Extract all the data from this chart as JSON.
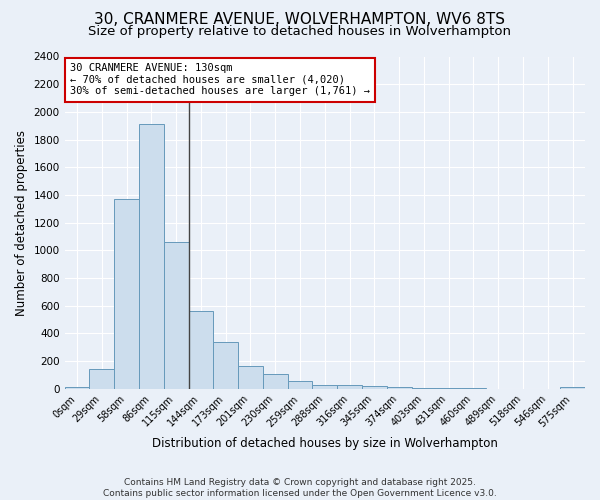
{
  "title_line1": "30, CRANMERE AVENUE, WOLVERHAMPTON, WV6 8TS",
  "title_line2": "Size of property relative to detached houses in Wolverhampton",
  "xlabel": "Distribution of detached houses by size in Wolverhampton",
  "ylabel": "Number of detached properties",
  "bar_color": "#ccdded",
  "bar_edge_color": "#6699bb",
  "background_color": "#eaf0f8",
  "grid_color": "#ffffff",
  "categories": [
    "0sqm",
    "29sqm",
    "58sqm",
    "86sqm",
    "115sqm",
    "144sqm",
    "173sqm",
    "201sqm",
    "230sqm",
    "259sqm",
    "288sqm",
    "316sqm",
    "345sqm",
    "374sqm",
    "403sqm",
    "431sqm",
    "460sqm",
    "489sqm",
    "518sqm",
    "546sqm",
    "575sqm"
  ],
  "values": [
    10,
    140,
    1370,
    1910,
    1060,
    560,
    340,
    165,
    105,
    55,
    30,
    30,
    20,
    15,
    5,
    5,
    5,
    0,
    0,
    0,
    15
  ],
  "ylim": [
    0,
    2400
  ],
  "yticks": [
    0,
    200,
    400,
    600,
    800,
    1000,
    1200,
    1400,
    1600,
    1800,
    2000,
    2200,
    2400
  ],
  "property_line_x": 4.5,
  "annotation_text": "30 CRANMERE AVENUE: 130sqm\n← 70% of detached houses are smaller (4,020)\n30% of semi-detached houses are larger (1,761) →",
  "annotation_box_color": "#ffffff",
  "annotation_box_edge": "#cc0000",
  "footer_line1": "Contains HM Land Registry data © Crown copyright and database right 2025.",
  "footer_line2": "Contains public sector information licensed under the Open Government Licence v3.0.",
  "title_fontsize": 11,
  "subtitle_fontsize": 9.5,
  "label_fontsize": 8.5,
  "tick_fontsize": 7.5,
  "annotation_fontsize": 7.5,
  "footer_fontsize": 6.5
}
